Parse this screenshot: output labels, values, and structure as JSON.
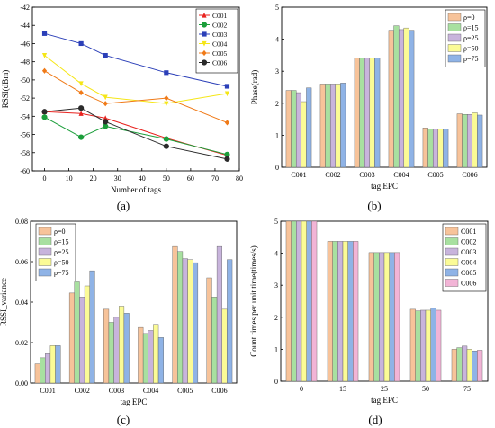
{
  "chart_data": [
    {
      "id": "a",
      "type": "line",
      "caption": "(a)",
      "xlabel": "Number of tags",
      "ylabel": "RSSI(dBm)",
      "xlim": [
        -5,
        80
      ],
      "ylim": [
        -60,
        -42
      ],
      "xticks": [
        0,
        10,
        20,
        30,
        40,
        50,
        60,
        70,
        80
      ],
      "yticks": [
        -60,
        -58,
        -56,
        -54,
        -52,
        -50,
        -48,
        -46,
        -44,
        -42
      ],
      "x": [
        0,
        15,
        25,
        50,
        75
      ],
      "legend_position": "top-right",
      "series": [
        {
          "name": "C001",
          "marker": "triangle",
          "color": "#e8231f",
          "values": [
            -53.5,
            -53.7,
            -54.2,
            -56.4,
            -58.3
          ]
        },
        {
          "name": "C002",
          "marker": "circle",
          "color": "#1b9e3a",
          "values": [
            -54.1,
            -56.3,
            -55.1,
            -56.5,
            -58.2
          ]
        },
        {
          "name": "C003",
          "marker": "square",
          "color": "#2b3fb8",
          "values": [
            -44.9,
            -46.0,
            -47.3,
            -49.2,
            -50.7
          ]
        },
        {
          "name": "C004",
          "marker": "triangle-down",
          "color": "#f5e617",
          "values": [
            -47.3,
            -50.4,
            -51.9,
            -52.6,
            -51.5
          ]
        },
        {
          "name": "C005",
          "marker": "diamond",
          "color": "#f07a18",
          "values": [
            -49.0,
            -51.4,
            -52.6,
            -52.0,
            -54.7
          ]
        },
        {
          "name": "C006",
          "marker": "circle",
          "color": "#2b2b2b",
          "values": [
            -53.5,
            -53.1,
            -54.6,
            -57.3,
            -58.7
          ]
        }
      ]
    },
    {
      "id": "b",
      "type": "bar",
      "caption": "(b)",
      "xlabel": "tag EPC",
      "ylabel": "Phase(rad)",
      "ylim": [
        0,
        5
      ],
      "yticks": [
        0,
        1,
        2,
        3,
        4,
        5
      ],
      "categories": [
        "C001",
        "C002",
        "C003",
        "C004",
        "C005",
        "C006"
      ],
      "legend_position": "top-right",
      "series": [
        {
          "name": "ρ=0",
          "color": "#f7c39a",
          "values": [
            2.4,
            2.6,
            3.42,
            4.28,
            1.23,
            1.67
          ]
        },
        {
          "name": "ρ=15",
          "color": "#a8e0a0",
          "values": [
            2.4,
            2.6,
            3.42,
            4.42,
            1.2,
            1.65
          ]
        },
        {
          "name": "ρ=25",
          "color": "#c8b4dc",
          "values": [
            2.33,
            2.6,
            3.42,
            4.3,
            1.2,
            1.65
          ]
        },
        {
          "name": "ρ=50",
          "color": "#fbfb96",
          "values": [
            2.05,
            2.6,
            3.42,
            4.35,
            1.2,
            1.7
          ]
        },
        {
          "name": "ρ=75",
          "color": "#8fb3e6",
          "values": [
            2.48,
            2.63,
            3.42,
            4.28,
            1.2,
            1.63
          ]
        }
      ]
    },
    {
      "id": "c",
      "type": "bar",
      "caption": "(c)",
      "xlabel": "tag EPC",
      "ylabel": "RSSI_variance",
      "ylim": [
        0,
        0.08
      ],
      "yticks": [
        0,
        0.02,
        0.04,
        0.06,
        0.08
      ],
      "ytick_labels": [
        "0.00",
        "0.02",
        "0.04",
        "0.06",
        "0.08"
      ],
      "categories": [
        "C001",
        "C002",
        "C003",
        "C004",
        "C005",
        "C006"
      ],
      "legend_position": "top-left",
      "series": [
        {
          "name": "ρ=0",
          "color": "#f7c39a",
          "values": [
            0.0095,
            0.0445,
            0.0365,
            0.0275,
            0.0675,
            0.052
          ]
        },
        {
          "name": "ρ=15",
          "color": "#a8e0a0",
          "values": [
            0.0125,
            0.05,
            0.03,
            0.0245,
            0.065,
            0.0425
          ]
        },
        {
          "name": "ρ=25",
          "color": "#c8b4dc",
          "values": [
            0.0145,
            0.0425,
            0.0325,
            0.026,
            0.0615,
            0.0675
          ]
        },
        {
          "name": "ρ=50",
          "color": "#fbfb96",
          "values": [
            0.0185,
            0.048,
            0.038,
            0.029,
            0.061,
            0.0365
          ]
        },
        {
          "name": "ρ=75",
          "color": "#8fb3e6",
          "values": [
            0.0185,
            0.0555,
            0.0345,
            0.0225,
            0.0595,
            0.061
          ]
        }
      ]
    },
    {
      "id": "d",
      "type": "bar",
      "caption": "(d)",
      "xlabel": "tag EPC",
      "ylabel": "Count times per unit time(times/s)",
      "ylim": [
        0,
        5
      ],
      "yticks": [
        0,
        1,
        2,
        3,
        4,
        5
      ],
      "categories": [
        "0",
        "15",
        "25",
        "50",
        "75"
      ],
      "legend_position": "top-right",
      "series": [
        {
          "name": "C001",
          "color": "#f7c39a",
          "values": [
            5.0,
            4.37,
            4.02,
            2.25,
            1.0
          ]
        },
        {
          "name": "C002",
          "color": "#a8e0a0",
          "values": [
            5.0,
            4.37,
            4.02,
            2.2,
            1.05
          ]
        },
        {
          "name": "C003",
          "color": "#c8b4dc",
          "values": [
            5.0,
            4.37,
            4.02,
            2.22,
            1.1
          ]
        },
        {
          "name": "C004",
          "color": "#fbfb96",
          "values": [
            5.0,
            4.37,
            4.02,
            2.22,
            1.0
          ]
        },
        {
          "name": "C005",
          "color": "#8fb3e6",
          "values": [
            5.0,
            4.37,
            4.02,
            2.28,
            0.95
          ]
        },
        {
          "name": "C006",
          "color": "#f2b4d6",
          "values": [
            5.0,
            4.37,
            4.02,
            2.22,
            0.97
          ]
        }
      ]
    }
  ]
}
